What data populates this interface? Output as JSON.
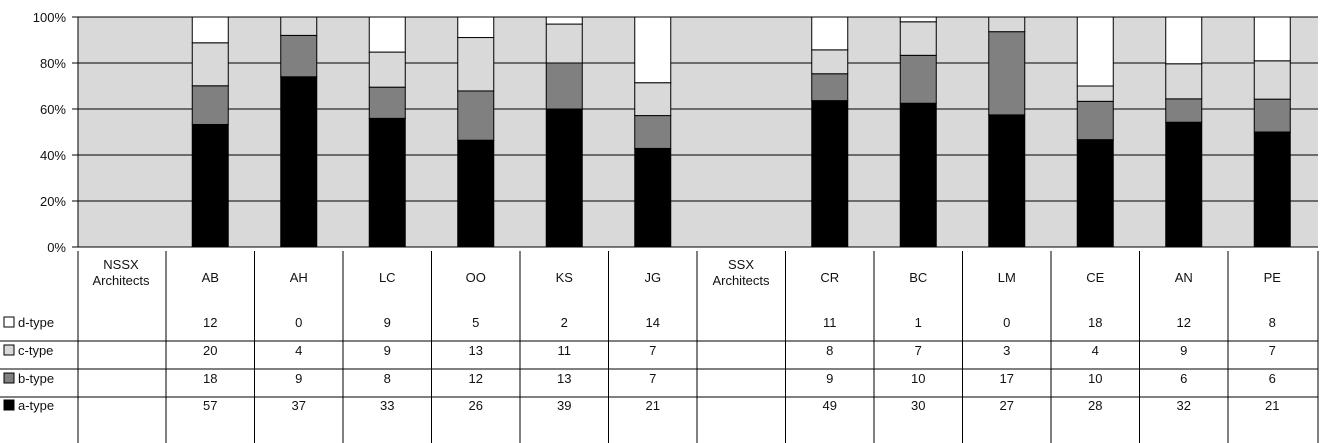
{
  "chart_data": {
    "type": "bar",
    "stacked": true,
    "normalized": true,
    "yticks": [
      "0%",
      "20%",
      "40%",
      "60%",
      "80%",
      "100%"
    ],
    "ylim": [
      0,
      100
    ],
    "grid": true,
    "groups": [
      {
        "label_line1": "NSSX",
        "label_line2": "Architects",
        "categories": [
          "AB",
          "AH",
          "LC",
          "OO",
          "KS",
          "JG"
        ]
      },
      {
        "label_line1": "SSX",
        "label_line2": "Architects",
        "categories": [
          "CR",
          "BC",
          "LM",
          "CE",
          "AN",
          "PE"
        ]
      }
    ],
    "categories": [
      "AB",
      "AH",
      "LC",
      "OO",
      "KS",
      "JG",
      "CR",
      "BC",
      "LM",
      "CE",
      "AN",
      "PE"
    ],
    "series": [
      {
        "name": "a-type",
        "color": "#000000",
        "values": [
          57,
          37,
          33,
          26,
          39,
          21,
          49,
          30,
          27,
          28,
          32,
          21
        ]
      },
      {
        "name": "b-type",
        "color": "#808080",
        "values": [
          18,
          9,
          8,
          12,
          13,
          7,
          9,
          10,
          17,
          10,
          6,
          6
        ]
      },
      {
        "name": "c-type",
        "color": "#d9d9d9",
        "values": [
          20,
          4,
          9,
          13,
          11,
          7,
          8,
          7,
          3,
          4,
          9,
          7
        ]
      },
      {
        "name": "d-type",
        "color": "#ffffff",
        "values": [
          12,
          0,
          9,
          5,
          2,
          14,
          11,
          1,
          0,
          18,
          12,
          8
        ]
      }
    ],
    "colors": {
      "plot_background": "#d9d9d9",
      "gridline": "#000000"
    }
  }
}
